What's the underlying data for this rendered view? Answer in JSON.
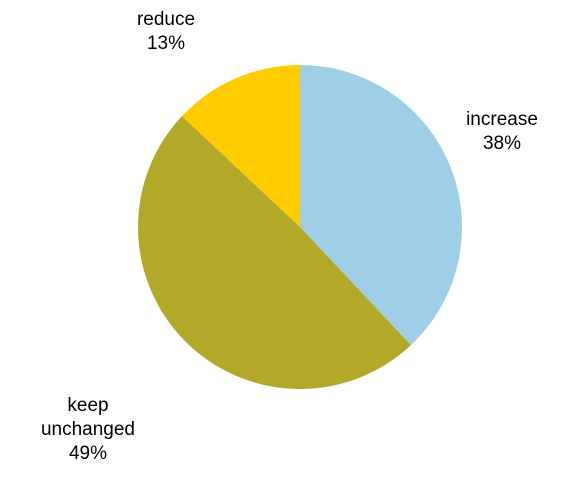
{
  "chart_data": {
    "type": "pie",
    "start_angle_deg": 0,
    "direction": "clockwise",
    "slices": [
      {
        "label": "increase",
        "value": 38,
        "percent_label": "38%",
        "color": "#9ECFE6"
      },
      {
        "label": "keep unchanged",
        "value": 49,
        "percent_label": "49%",
        "color": "#B2A928"
      },
      {
        "label": "reduce",
        "value": 13,
        "percent_label": "13%",
        "color": "#FFCC00"
      }
    ]
  }
}
